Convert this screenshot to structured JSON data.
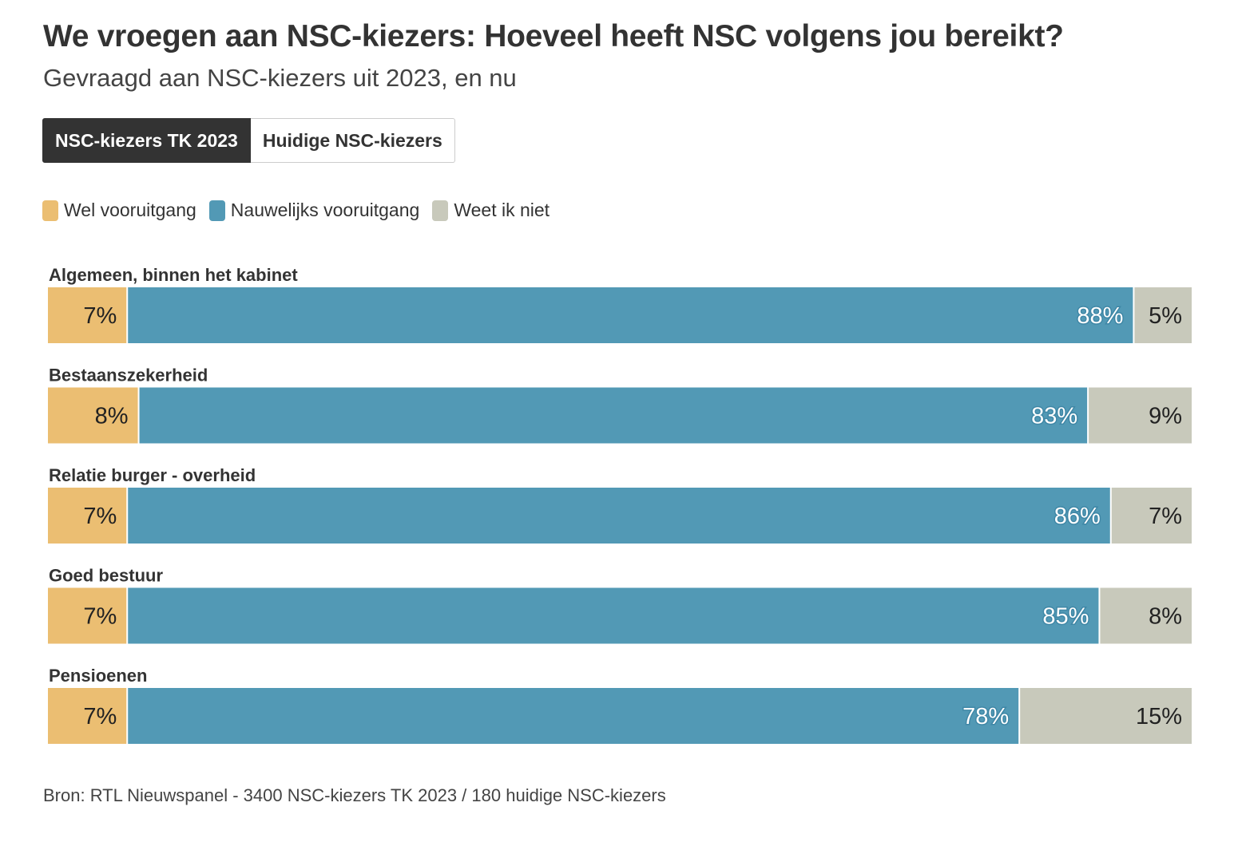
{
  "header": {
    "title": "We vroegen aan NSC-kiezers: Hoeveel heeft NSC volgens jou bereikt?",
    "subtitle": "Gevraagd aan NSC-kiezers uit 2023, en nu"
  },
  "tabs": [
    {
      "label": "NSC-kiezers TK 2023",
      "active": true
    },
    {
      "label": "Huidige NSC-kiezers",
      "active": false
    }
  ],
  "legend": [
    {
      "label": "Wel vooruitgang",
      "color": "#EBBE72"
    },
    {
      "label": "Nauwelijks vooruitgang",
      "color": "#5299B5"
    },
    {
      "label": "Weet ik niet",
      "color": "#C8C9BB"
    }
  ],
  "chart_data": {
    "type": "bar",
    "stacked": true,
    "orientation": "horizontal",
    "unit": "%",
    "categories": [
      "Algemeen, binnen het kabinet",
      "Bestaanszekerheid",
      "Relatie burger - overheid",
      "Goed bestuur",
      "Pensioenen"
    ],
    "series": [
      {
        "name": "Wel vooruitgang",
        "color": "#EBBE72",
        "values": [
          7,
          8,
          7,
          7,
          7
        ]
      },
      {
        "name": "Nauwelijks vooruitgang",
        "color": "#5299B5",
        "values": [
          88,
          83,
          86,
          85,
          78
        ]
      },
      {
        "name": "Weet ik niet",
        "color": "#C8C9BB",
        "values": [
          5,
          9,
          7,
          8,
          15
        ]
      }
    ],
    "xlim": [
      0,
      100
    ],
    "grid": false,
    "legend_position": "top-left"
  },
  "footer": {
    "source": "Bron: RTL Nieuwspanel - 3400 NSC-kiezers TK 2023 / 180 huidige NSC-kiezers"
  }
}
